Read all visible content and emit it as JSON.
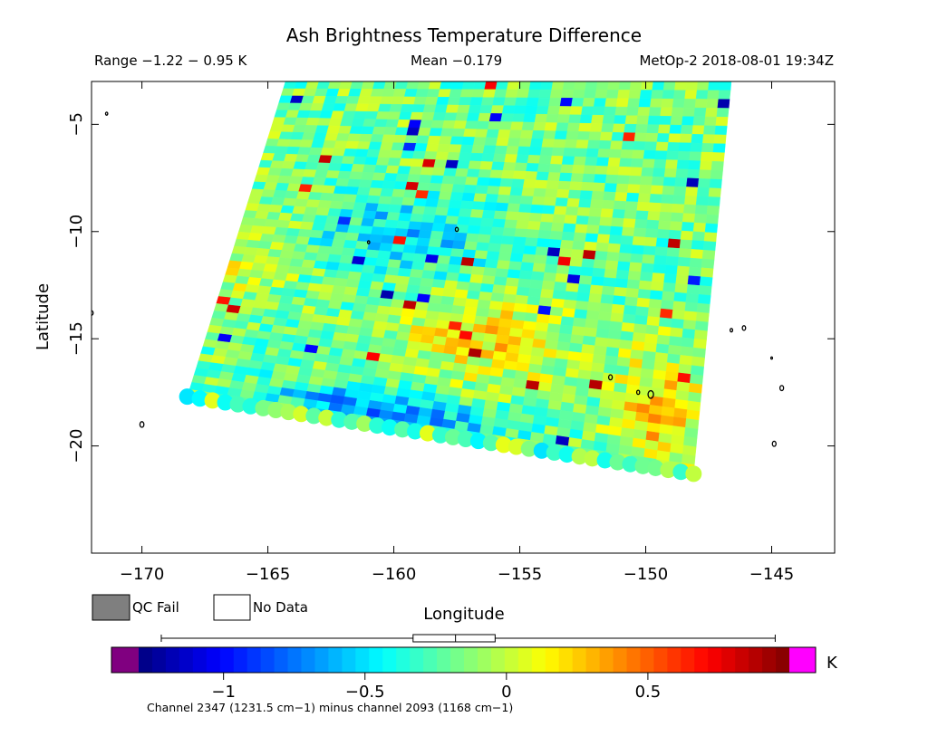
{
  "header": {
    "title": "Ash Brightness Temperature Difference",
    "range": "Range −1.22 − 0.95 K",
    "mean": "Mean −0.179",
    "platform": "MetOp-2 2018-08-01 19:34Z"
  },
  "legend": {
    "qc_fail": "QC Fail",
    "no_data": "No Data",
    "qc_fail_color": "#7f7f7f"
  },
  "colorbar": {
    "unit": "K",
    "caption": "Channel 2347 (1231.5 cm−1) minus channel 2093 (1168 cm−1)",
    "min": -1.3,
    "max": 1.0,
    "tick_values": [
      -1,
      -0.5,
      0,
      0.5
    ],
    "tick_labels": [
      "−1",
      "−0.5",
      "0",
      "0.5"
    ],
    "under_color": "#800080",
    "over_color": "#ff00ff",
    "box_plot": {
      "min": -1.22,
      "q1": -0.33,
      "median": -0.18,
      "q3": -0.04,
      "max": 0.95
    }
  },
  "chart_data": {
    "type": "heatmap",
    "title": "Ash Brightness Temperature Difference",
    "xlabel": "Longitude",
    "ylabel": "Latitude",
    "xlim": [
      -172,
      -142.5
    ],
    "ylim": [
      -25,
      -3
    ],
    "xticks": [
      -170,
      -165,
      -160,
      -155,
      -150,
      -145
    ],
    "xtick_labels": [
      "−170",
      "−165",
      "−160",
      "−155",
      "−150",
      "−145"
    ],
    "yticks": [
      -5,
      -10,
      -15,
      -20
    ],
    "ytick_labels": [
      "−5",
      "−10",
      "−15",
      "−20"
    ],
    "swath_corners": [
      [
        -164.3,
        -3
      ],
      [
        -146.6,
        -3
      ],
      [
        -148.1,
        -21.3
      ],
      [
        -168.2,
        -17.7
      ]
    ],
    "value_range": [
      -1.22,
      0.95
    ],
    "mean": -0.179
  }
}
